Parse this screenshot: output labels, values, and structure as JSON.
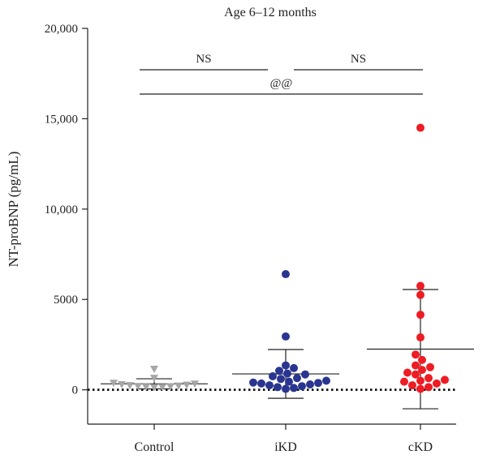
{
  "chart_data": {
    "type": "scatter",
    "title": "Age 6–12 months",
    "ylabel": "NT-proBNP (pg/mL)",
    "xlabel": "",
    "ylim": [
      -1900,
      20000
    ],
    "yticks": [
      0,
      5000,
      10000,
      15000,
      20000
    ],
    "ytick_labels": [
      "0",
      "5000",
      "10,000",
      "15,000",
      "20,000"
    ],
    "reference_line": {
      "y": 0,
      "style": "dotted"
    },
    "categories": [
      "Control",
      "iKD",
      "cKD"
    ],
    "series": [
      {
        "category": "Control",
        "marker": "triangle-down",
        "color": "#a6a6a6",
        "values": [
          1150,
          650,
          380,
          330,
          300,
          270,
          250,
          220,
          200,
          180,
          160,
          150,
          130
        ],
        "mean": 330,
        "sd": 280
      },
      {
        "category": "iKD",
        "marker": "circle",
        "color": "#2a3590",
        "values": [
          6400,
          2950,
          1350,
          1200,
          1050,
          900,
          850,
          750,
          650,
          600,
          500,
          450,
          400,
          380,
          350,
          300,
          250,
          200,
          150,
          100,
          50
        ],
        "mean": 880,
        "sd": 1350
      },
      {
        "category": "cKD",
        "marker": "circle",
        "color": "#ee1c24",
        "values": [
          14500,
          5750,
          5250,
          4150,
          2900,
          1950,
          1650,
          1350,
          1250,
          1100,
          950,
          850,
          650,
          550,
          500,
          450,
          350,
          250,
          150,
          50
        ],
        "mean": 2250,
        "sd": 3300
      }
    ],
    "significance": [
      {
        "label": "NS",
        "from": "Control",
        "to": "iKD"
      },
      {
        "label": "NS",
        "from": "iKD",
        "to": "cKD"
      },
      {
        "label": "@@",
        "from": "Control",
        "to": "cKD"
      }
    ]
  }
}
